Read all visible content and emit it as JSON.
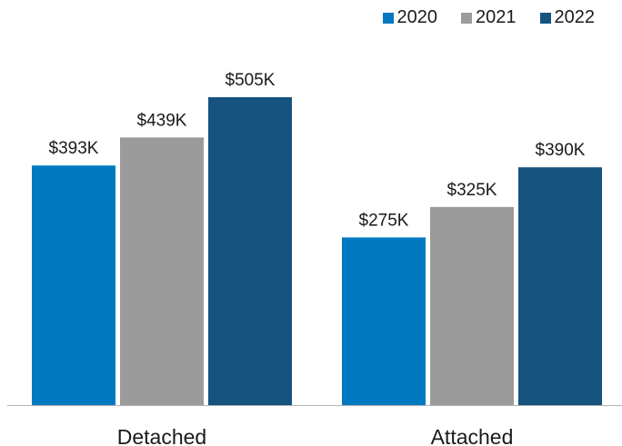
{
  "chart_data": {
    "type": "bar",
    "categories": [
      "Detached",
      "Attached"
    ],
    "series": [
      {
        "name": "2020",
        "color": "#0079c1",
        "values": [
          393,
          275
        ],
        "labels": [
          "$393K",
          "$275K"
        ]
      },
      {
        "name": "2021",
        "color": "#9b9b9b",
        "values": [
          439,
          325
        ],
        "labels": [
          "$439K",
          "$325K"
        ]
      },
      {
        "name": "2022",
        "color": "#16537e",
        "values": [
          505,
          390
        ],
        "labels": [
          "$505K",
          "$390K"
        ]
      }
    ],
    "title": "",
    "xlabel": "",
    "ylabel": "",
    "ylim": [
      0,
      505
    ],
    "grid": false,
    "legend": "top-right"
  }
}
